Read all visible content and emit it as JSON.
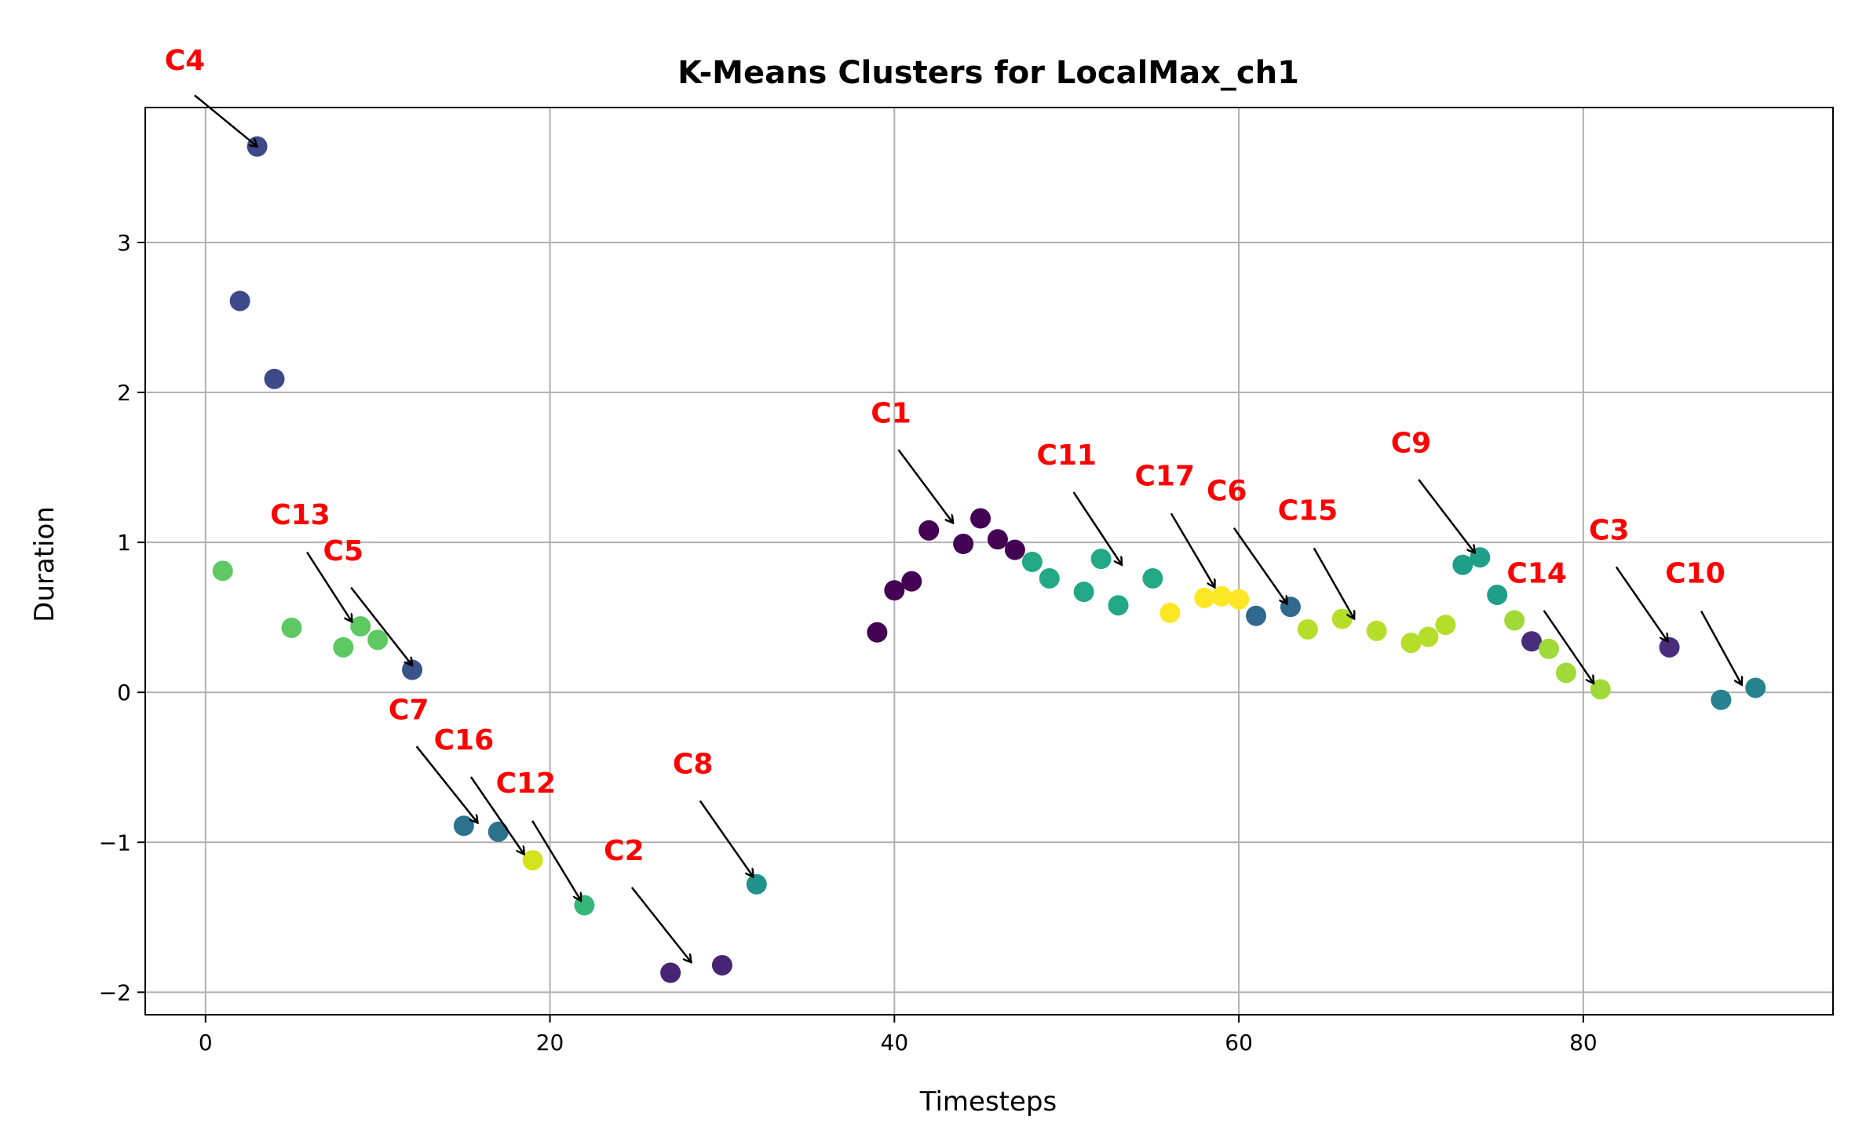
{
  "chart_data": {
    "type": "scatter",
    "title": "K-Means Clusters for LocalMax_ch1",
    "xlabel": "Timesteps",
    "ylabel": "Duration",
    "xlim": [
      -3.5,
      94.5
    ],
    "ylim": [
      -2.15,
      3.9
    ],
    "xticks": [
      0,
      20,
      40,
      60,
      80
    ],
    "xtick_labels": [
      "0",
      "20",
      "40",
      "60",
      "80"
    ],
    "yticks": [
      -2,
      -1,
      0,
      1,
      2,
      3
    ],
    "ytick_labels": [
      "−2",
      "−1",
      "0",
      "1",
      "2",
      "3"
    ],
    "grid": true,
    "colormap": "viridis",
    "points": [
      {
        "x": 1,
        "y": 0.81,
        "color": "#5ec962"
      },
      {
        "x": 2,
        "y": 2.61,
        "color": "#3e4989"
      },
      {
        "x": 3,
        "y": 3.64,
        "color": "#3e4989"
      },
      {
        "x": 4,
        "y": 2.09,
        "color": "#3e4989"
      },
      {
        "x": 5,
        "y": 0.43,
        "color": "#5ec962"
      },
      {
        "x": 8,
        "y": 0.3,
        "color": "#5ec962"
      },
      {
        "x": 9,
        "y": 0.44,
        "color": "#5ec962"
      },
      {
        "x": 10,
        "y": 0.35,
        "color": "#5ec962"
      },
      {
        "x": 12,
        "y": 0.15,
        "color": "#3b528b"
      },
      {
        "x": 15,
        "y": -0.89,
        "color": "#2c728e"
      },
      {
        "x": 17,
        "y": -0.93,
        "color": "#2c728e"
      },
      {
        "x": 19,
        "y": -1.12,
        "color": "#d2e21b"
      },
      {
        "x": 22,
        "y": -1.42,
        "color": "#35b779"
      },
      {
        "x": 27,
        "y": -1.87,
        "color": "#482475"
      },
      {
        "x": 30,
        "y": -1.82,
        "color": "#482475"
      },
      {
        "x": 32,
        "y": -1.28,
        "color": "#21918c"
      },
      {
        "x": 39,
        "y": 0.4,
        "color": "#440154"
      },
      {
        "x": 40,
        "y": 0.68,
        "color": "#440154"
      },
      {
        "x": 41,
        "y": 0.74,
        "color": "#440154"
      },
      {
        "x": 42,
        "y": 1.08,
        "color": "#440154"
      },
      {
        "x": 44,
        "y": 0.99,
        "color": "#440154"
      },
      {
        "x": 45,
        "y": 1.16,
        "color": "#440154"
      },
      {
        "x": 46,
        "y": 1.02,
        "color": "#440154"
      },
      {
        "x": 47,
        "y": 0.95,
        "color": "#440154"
      },
      {
        "x": 48,
        "y": 0.87,
        "color": "#22a884"
      },
      {
        "x": 49,
        "y": 0.76,
        "color": "#22a884"
      },
      {
        "x": 51,
        "y": 0.67,
        "color": "#22a884"
      },
      {
        "x": 52,
        "y": 0.89,
        "color": "#22a884"
      },
      {
        "x": 53,
        "y": 0.58,
        "color": "#22a884"
      },
      {
        "x": 55,
        "y": 0.76,
        "color": "#22a884"
      },
      {
        "x": 56,
        "y": 0.53,
        "color": "#fde725"
      },
      {
        "x": 58,
        "y": 0.63,
        "color": "#fde725"
      },
      {
        "x": 59,
        "y": 0.64,
        "color": "#fde725"
      },
      {
        "x": 60,
        "y": 0.62,
        "color": "#fde725"
      },
      {
        "x": 61,
        "y": 0.51,
        "color": "#31688e"
      },
      {
        "x": 63,
        "y": 0.57,
        "color": "#31688e"
      },
      {
        "x": 64,
        "y": 0.42,
        "color": "#b5de2b"
      },
      {
        "x": 66,
        "y": 0.49,
        "color": "#b5de2b"
      },
      {
        "x": 68,
        "y": 0.41,
        "color": "#b5de2b"
      },
      {
        "x": 70,
        "y": 0.33,
        "color": "#b5de2b"
      },
      {
        "x": 71,
        "y": 0.37,
        "color": "#b5de2b"
      },
      {
        "x": 72,
        "y": 0.45,
        "color": "#b5de2b"
      },
      {
        "x": 73,
        "y": 0.85,
        "color": "#1f9e89"
      },
      {
        "x": 74,
        "y": 0.9,
        "color": "#1f9e89"
      },
      {
        "x": 75,
        "y": 0.65,
        "color": "#1f9e89"
      },
      {
        "x": 76,
        "y": 0.48,
        "color": "#a0da39"
      },
      {
        "x": 77,
        "y": 0.34,
        "color": "#472d7b"
      },
      {
        "x": 78,
        "y": 0.29,
        "color": "#a0da39"
      },
      {
        "x": 79,
        "y": 0.13,
        "color": "#a0da39"
      },
      {
        "x": 81,
        "y": 0.02,
        "color": "#a0da39"
      },
      {
        "x": 85,
        "y": 0.3,
        "color": "#472d7b"
      },
      {
        "x": 88,
        "y": -0.05,
        "color": "#26828e"
      },
      {
        "x": 90,
        "y": 0.03,
        "color": "#26828e"
      }
    ],
    "annotations": [
      {
        "label": "C4",
        "text_x": -1.2,
        "text_y": 4.15,
        "point_x": 3,
        "point_y": 3.64
      },
      {
        "label": "C13",
        "text_x": 5.5,
        "text_y": 1.12,
        "point_x": 8.5,
        "point_y": 0.47
      },
      {
        "label": "C5",
        "text_x": 8.0,
        "text_y": 0.88,
        "point_x": 12,
        "point_y": 0.18
      },
      {
        "label": "C7",
        "text_x": 11.8,
        "text_y": -0.18,
        "point_x": 15.8,
        "point_y": -0.87
      },
      {
        "label": "C16",
        "text_x": 15.0,
        "text_y": -0.38,
        "point_x": 18.5,
        "point_y": -1.08
      },
      {
        "label": "C12",
        "text_x": 18.6,
        "text_y": -0.67,
        "point_x": 21.8,
        "point_y": -1.39
      },
      {
        "label": "C2",
        "text_x": 24.3,
        "text_y": -1.12,
        "point_x": 28.2,
        "point_y": -1.8
      },
      {
        "label": "C8",
        "text_x": 28.3,
        "text_y": -0.54,
        "point_x": 31.8,
        "point_y": -1.23
      },
      {
        "label": "C1",
        "text_x": 39.8,
        "text_y": 1.8,
        "point_x": 43.4,
        "point_y": 1.13
      },
      {
        "label": "C11",
        "text_x": 50.0,
        "text_y": 1.52,
        "point_x": 53.2,
        "point_y": 0.85
      },
      {
        "label": "C17",
        "text_x": 55.7,
        "text_y": 1.38,
        "point_x": 58.6,
        "point_y": 0.7
      },
      {
        "label": "C6",
        "text_x": 59.3,
        "text_y": 1.28,
        "point_x": 62.8,
        "point_y": 0.59
      },
      {
        "label": "C15",
        "text_x": 64.0,
        "text_y": 1.15,
        "point_x": 66.7,
        "point_y": 0.49
      },
      {
        "label": "C9",
        "text_x": 70.0,
        "text_y": 1.6,
        "point_x": 73.7,
        "point_y": 0.93
      },
      {
        "label": "C14",
        "text_x": 77.3,
        "text_y": 0.73,
        "point_x": 80.6,
        "point_y": 0.06
      },
      {
        "label": "C3",
        "text_x": 81.5,
        "text_y": 1.02,
        "point_x": 84.9,
        "point_y": 0.34
      },
      {
        "label": "C10",
        "text_x": 86.5,
        "text_y": 0.73,
        "point_x": 89.2,
        "point_y": 0.05
      }
    ]
  }
}
